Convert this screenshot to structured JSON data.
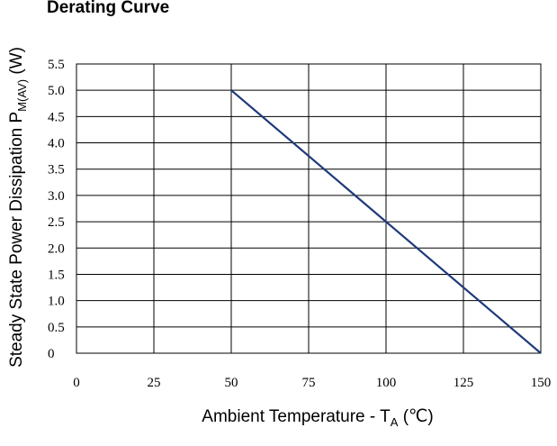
{
  "chart_data": {
    "type": "line",
    "title": "Derating  Curve",
    "xlabel_main": "Ambient Temperature - T",
    "xlabel_sub": "A",
    "xlabel_unit": " (℃)",
    "ylabel_main": "Steady State Power Dissipation  P",
    "ylabel_sub": "M(AV)",
    "ylabel_unit": "  (W)",
    "xlim": [
      0,
      150
    ],
    "ylim": [
      0,
      5.5
    ],
    "x_ticks": [
      0,
      25,
      50,
      75,
      100,
      125,
      150
    ],
    "x_tick_labels": [
      "0",
      "25",
      "50",
      "75",
      "100",
      "125",
      "150"
    ],
    "y_ticks": [
      0,
      0.5,
      1.0,
      1.5,
      2.0,
      2.5,
      3.0,
      3.5,
      4.0,
      4.5,
      5.0,
      5.5
    ],
    "y_tick_labels": [
      "0",
      "0.5",
      "1.0",
      "1.5",
      "2.0",
      "2.5",
      "3.0",
      "3.5",
      "4.0",
      "4.5",
      "5.0",
      "5.5"
    ],
    "grid": true,
    "series": [
      {
        "x": [
          50,
          150
        ],
        "y": [
          5.0,
          0
        ],
        "color": "#1f3a7a"
      }
    ]
  }
}
